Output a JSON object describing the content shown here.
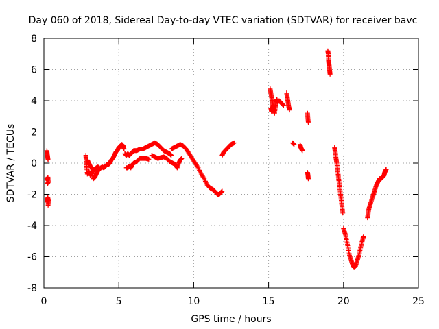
{
  "chart_data": {
    "type": "scatter",
    "title": "Day 060 of 2018, Sidereal Day-to-day VTEC variation (SDTVAR) for receiver bavc",
    "xlabel": "GPS time / hours",
    "ylabel": "SDTVAR / TECUs",
    "xlim": [
      0,
      25
    ],
    "ylim": [
      -8,
      8
    ],
    "xticks": [
      0,
      5,
      10,
      15,
      20,
      25
    ],
    "yticks": [
      -8,
      -6,
      -4,
      -2,
      0,
      2,
      4,
      6,
      8
    ],
    "grid": true,
    "marker": "+",
    "color": "#ff0000",
    "series": [
      {
        "segments": [
          [
            [
              0.2,
              0.8
            ],
            [
              0.22,
              0.6
            ],
            [
              0.25,
              0.4
            ],
            [
              0.28,
              0.2
            ]
          ],
          [
            [
              0.2,
              -1.0
            ],
            [
              0.23,
              -1.1
            ],
            [
              0.27,
              -0.9
            ],
            [
              0.3,
              -1.2
            ],
            [
              0.25,
              -1.3
            ]
          ],
          [
            [
              0.2,
              -2.3
            ],
            [
              0.23,
              -2.5
            ],
            [
              0.26,
              -2.2
            ],
            [
              0.3,
              -2.4
            ],
            [
              0.28,
              -2.7
            ]
          ],
          [
            [
              2.8,
              0.5
            ],
            [
              2.82,
              0.2
            ],
            [
              2.85,
              -0.2
            ],
            [
              2.9,
              -0.7
            ],
            [
              3.0,
              -0.5
            ],
            [
              3.1,
              -0.8
            ],
            [
              3.2,
              -0.6
            ],
            [
              3.3,
              -1.0
            ],
            [
              3.4,
              -0.9
            ],
            [
              3.5,
              -0.7
            ],
            [
              3.6,
              -0.5
            ],
            [
              3.7,
              -0.4
            ],
            [
              3.8,
              -0.3
            ],
            [
              3.9,
              -0.25
            ],
            [
              4.0,
              -0.3
            ],
            [
              4.1,
              -0.2
            ],
            [
              4.2,
              -0.1
            ],
            [
              4.3,
              -0.1
            ],
            [
              4.4,
              0.0
            ],
            [
              4.5,
              0.2
            ],
            [
              4.6,
              0.3
            ],
            [
              4.7,
              0.5
            ],
            [
              4.8,
              0.7
            ],
            [
              4.9,
              0.8
            ],
            [
              5.0,
              1.0
            ],
            [
              5.1,
              1.1
            ],
            [
              5.2,
              1.2
            ],
            [
              5.3,
              1.1
            ],
            [
              5.35,
              0.9
            ]
          ],
          [
            [
              2.9,
              0.2
            ],
            [
              3.0,
              0.0
            ],
            [
              3.1,
              -0.2
            ],
            [
              3.2,
              -0.3
            ],
            [
              3.3,
              -0.5
            ],
            [
              3.4,
              -0.4
            ],
            [
              3.5,
              -0.3
            ],
            [
              3.6,
              -0.25
            ],
            [
              3.7,
              -0.3
            ]
          ],
          [
            [
              5.4,
              0.6
            ],
            [
              5.5,
              0.5
            ],
            [
              5.6,
              0.6
            ],
            [
              5.7,
              0.5
            ],
            [
              5.8,
              0.6
            ],
            [
              5.9,
              0.7
            ],
            [
              6.0,
              0.8
            ],
            [
              6.2,
              0.8
            ],
            [
              6.4,
              0.9
            ],
            [
              6.6,
              0.9
            ],
            [
              6.8,
              1.0
            ],
            [
              7.0,
              1.1
            ],
            [
              7.2,
              1.2
            ],
            [
              7.4,
              1.3
            ],
            [
              7.6,
              1.2
            ],
            [
              7.8,
              1.0
            ],
            [
              8.0,
              0.8
            ],
            [
              8.2,
              0.7
            ],
            [
              8.4,
              0.6
            ],
            [
              8.5,
              0.5
            ]
          ],
          [
            [
              5.5,
              -0.3
            ],
            [
              5.6,
              -0.3
            ],
            [
              5.7,
              -0.2
            ],
            [
              5.8,
              -0.3
            ],
            [
              5.9,
              -0.1
            ],
            [
              6.0,
              0.0
            ],
            [
              6.2,
              0.1
            ],
            [
              6.4,
              0.3
            ],
            [
              6.6,
              0.3
            ],
            [
              6.8,
              0.3
            ],
            [
              7.0,
              0.25
            ]
          ],
          [
            [
              7.2,
              0.5
            ],
            [
              7.4,
              0.4
            ],
            [
              7.6,
              0.3
            ],
            [
              7.8,
              0.35
            ],
            [
              8.0,
              0.4
            ],
            [
              8.2,
              0.3
            ],
            [
              8.4,
              0.1
            ],
            [
              8.6,
              0.0
            ],
            [
              8.8,
              -0.1
            ],
            [
              8.9,
              -0.3
            ],
            [
              9.0,
              0.0
            ],
            [
              9.1,
              0.2
            ],
            [
              9.2,
              0.3
            ]
          ],
          [
            [
              8.5,
              0.9
            ],
            [
              8.7,
              1.0
            ],
            [
              8.9,
              1.1
            ],
            [
              9.1,
              1.2
            ],
            [
              9.3,
              1.1
            ],
            [
              9.5,
              0.9
            ],
            [
              9.7,
              0.6
            ],
            [
              9.9,
              0.3
            ],
            [
              10.1,
              0.0
            ],
            [
              10.3,
              -0.3
            ],
            [
              10.5,
              -0.7
            ],
            [
              10.7,
              -1.0
            ],
            [
              10.9,
              -1.4
            ],
            [
              11.1,
              -1.6
            ],
            [
              11.3,
              -1.7
            ],
            [
              11.5,
              -1.9
            ],
            [
              11.6,
              -2.0
            ],
            [
              11.7,
              -2.0
            ],
            [
              11.8,
              -1.9
            ],
            [
              11.9,
              -1.8
            ]
          ],
          [
            [
              11.9,
              0.5
            ],
            [
              12.0,
              0.7
            ],
            [
              12.1,
              0.8
            ],
            [
              12.2,
              0.9
            ],
            [
              12.3,
              1.0
            ],
            [
              12.4,
              1.1
            ],
            [
              12.5,
              1.2
            ],
            [
              12.6,
              1.25
            ],
            [
              12.7,
              1.3
            ]
          ],
          [
            [
              15.1,
              4.8
            ],
            [
              15.15,
              4.5
            ],
            [
              15.2,
              4.2
            ],
            [
              15.25,
              3.9
            ],
            [
              15.3,
              3.6
            ],
            [
              15.35,
              3.4
            ],
            [
              15.4,
              3.2
            ],
            [
              15.45,
              3.6
            ],
            [
              15.5,
              3.9
            ],
            [
              15.55,
              4.1
            ],
            [
              15.6,
              3.9
            ],
            [
              15.7,
              4.0
            ],
            [
              15.8,
              3.9
            ],
            [
              15.9,
              3.8
            ],
            [
              16.0,
              3.7
            ]
          ],
          [
            [
              15.15,
              3.5
            ],
            [
              15.2,
              3.3
            ],
            [
              15.25,
              3.5
            ],
            [
              15.3,
              3.7
            ]
          ],
          [
            [
              16.2,
              4.5
            ],
            [
              16.25,
              4.2
            ],
            [
              16.3,
              3.9
            ],
            [
              16.35,
              3.6
            ],
            [
              16.4,
              3.4
            ]
          ],
          [
            [
              16.6,
              1.3
            ],
            [
              16.7,
              1.2
            ]
          ],
          [
            [
              17.1,
              1.2
            ],
            [
              17.15,
              1.0
            ],
            [
              17.2,
              0.9
            ],
            [
              17.25,
              0.8
            ]
          ],
          [
            [
              17.6,
              3.2
            ],
            [
              17.62,
              2.9
            ],
            [
              17.65,
              2.6
            ]
          ],
          [
            [
              17.6,
              -0.6
            ],
            [
              17.63,
              -0.8
            ],
            [
              17.65,
              -1.0
            ]
          ],
          [
            [
              18.95,
              7.2
            ],
            [
              18.98,
              7.0
            ],
            [
              19.0,
              6.6
            ],
            [
              19.02,
              6.4
            ],
            [
              19.05,
              6.2
            ],
            [
              19.08,
              5.9
            ],
            [
              19.1,
              5.7
            ]
          ],
          [
            [
              19.4,
              1.0
            ],
            [
              19.45,
              0.7
            ],
            [
              19.5,
              0.3
            ],
            [
              19.55,
              0.0
            ],
            [
              19.6,
              -0.4
            ],
            [
              19.65,
              -0.8
            ],
            [
              19.7,
              -1.2
            ],
            [
              19.75,
              -1.6
            ],
            [
              19.8,
              -2.0
            ],
            [
              19.85,
              -2.4
            ],
            [
              19.9,
              -2.8
            ],
            [
              19.95,
              -3.2
            ]
          ],
          [
            [
              20.0,
              -4.2
            ],
            [
              20.1,
              -4.5
            ],
            [
              20.2,
              -4.9
            ],
            [
              20.3,
              -5.4
            ],
            [
              20.4,
              -5.9
            ],
            [
              20.5,
              -6.2
            ],
            [
              20.6,
              -6.5
            ],
            [
              20.7,
              -6.7
            ],
            [
              20.8,
              -6.6
            ],
            [
              20.9,
              -6.3
            ],
            [
              21.0,
              -6.0
            ],
            [
              21.1,
              -5.6
            ],
            [
              21.2,
              -5.2
            ],
            [
              21.3,
              -4.8
            ],
            [
              21.35,
              -4.7
            ]
          ],
          [
            [
              21.6,
              -3.5
            ],
            [
              21.65,
              -3.2
            ],
            [
              21.7,
              -2.9
            ],
            [
              21.8,
              -2.6
            ],
            [
              21.9,
              -2.3
            ],
            [
              22.0,
              -2.0
            ],
            [
              22.1,
              -1.7
            ],
            [
              22.2,
              -1.4
            ],
            [
              22.3,
              -1.2
            ],
            [
              22.4,
              -1.0
            ],
            [
              22.5,
              -1.0
            ],
            [
              22.6,
              -0.9
            ],
            [
              22.7,
              -0.8
            ],
            [
              22.75,
              -0.6
            ],
            [
              22.8,
              -0.5
            ],
            [
              22.85,
              -0.4
            ]
          ]
        ]
      }
    ]
  }
}
